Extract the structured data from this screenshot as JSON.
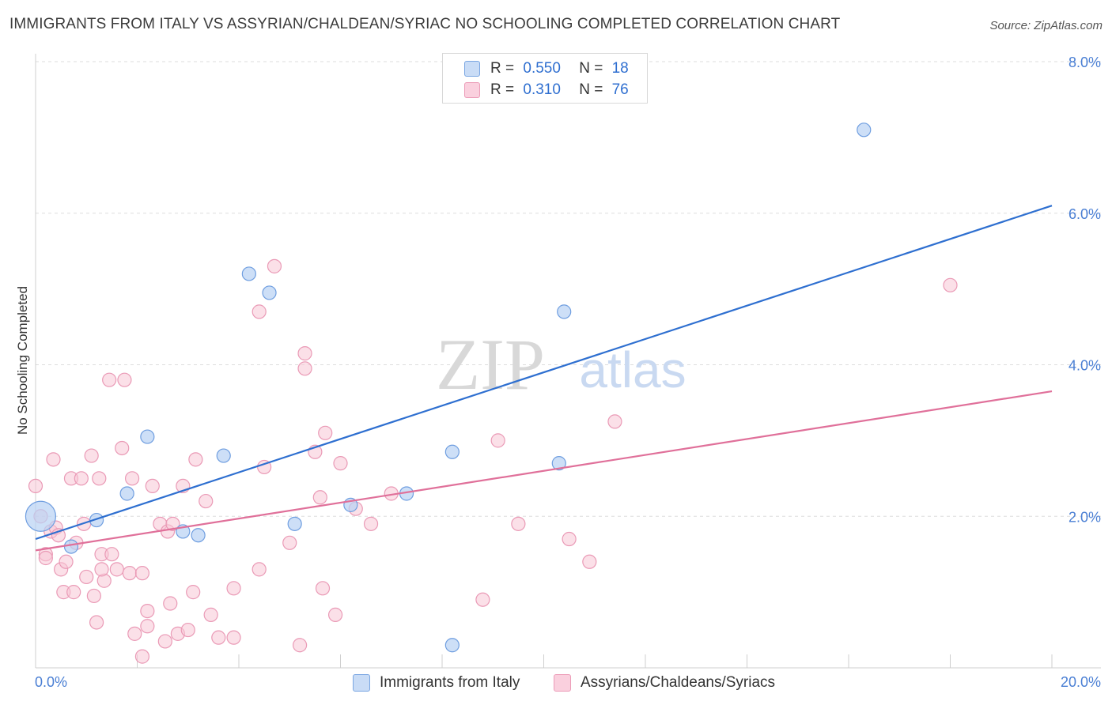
{
  "title": "IMMIGRANTS FROM ITALY VS ASSYRIAN/CHALDEAN/SYRIAC NO SCHOOLING COMPLETED CORRELATION CHART",
  "source": "Source: ZipAtlas.com",
  "legend": {
    "r_label": "R =",
    "n_label": "N =",
    "italy": {
      "r": "0.550",
      "n": "18"
    },
    "assyrian": {
      "r": "0.310",
      "n": "76"
    }
  },
  "colors": {
    "italy_fill": "#b8d2f4",
    "italy_stroke": "#6f9ee0",
    "italy_line": "#2e6fd0",
    "assyrian_fill": "#f8c6d6",
    "assyrian_stroke": "#ea9ab6",
    "assyrian_line": "#e0709a",
    "tick": "#4a7fd4"
  },
  "chart_data": {
    "type": "scatter",
    "ylabel": "No Schooling Completed",
    "x_tick_labels": [
      "0.0%",
      "20.0%"
    ],
    "y_tick_labels": [
      "2.0%",
      "4.0%",
      "6.0%",
      "8.0%"
    ],
    "xlim": [
      0,
      20
    ],
    "ylim": [
      0,
      8
    ],
    "y_ticks": [
      2,
      4,
      6,
      8
    ],
    "grid": "horizontal dashed",
    "legend_position": "top-center",
    "series": [
      {
        "name": "Immigrants from Italy",
        "points": [
          [
            0.1,
            2.0
          ],
          [
            0.7,
            1.6
          ],
          [
            1.2,
            1.95
          ],
          [
            1.8,
            2.3
          ],
          [
            2.2,
            3.05
          ],
          [
            2.9,
            1.8
          ],
          [
            3.2,
            1.75
          ],
          [
            3.7,
            2.8
          ],
          [
            4.2,
            5.2
          ],
          [
            4.6,
            4.95
          ],
          [
            5.1,
            1.9
          ],
          [
            6.2,
            2.15
          ],
          [
            7.3,
            2.3
          ],
          [
            8.2,
            2.85
          ],
          [
            10.4,
            4.7
          ],
          [
            10.3,
            2.7
          ],
          [
            16.3,
            7.1
          ],
          [
            8.2,
            0.3
          ]
        ],
        "trend": [
          [
            0,
            1.7
          ],
          [
            20,
            6.1
          ]
        ]
      },
      {
        "name": "Assyrians/Chaldeans/Syriacs",
        "points": [
          [
            0.0,
            2.4
          ],
          [
            0.1,
            2.0
          ],
          [
            0.2,
            1.5
          ],
          [
            0.3,
            1.8
          ],
          [
            0.35,
            2.75
          ],
          [
            0.4,
            1.85
          ],
          [
            0.45,
            1.75
          ],
          [
            0.5,
            1.3
          ],
          [
            0.55,
            1.0
          ],
          [
            0.6,
            1.4
          ],
          [
            0.7,
            2.5
          ],
          [
            0.75,
            1.0
          ],
          [
            0.8,
            1.65
          ],
          [
            0.9,
            2.5
          ],
          [
            0.95,
            1.9
          ],
          [
            1.0,
            1.2
          ],
          [
            1.1,
            2.8
          ],
          [
            1.15,
            0.95
          ],
          [
            1.2,
            0.6
          ],
          [
            1.25,
            2.5
          ],
          [
            1.3,
            1.5
          ],
          [
            1.35,
            1.15
          ],
          [
            1.45,
            3.8
          ],
          [
            1.5,
            1.5
          ],
          [
            1.6,
            1.3
          ],
          [
            1.7,
            2.9
          ],
          [
            1.75,
            3.8
          ],
          [
            1.85,
            1.25
          ],
          [
            1.9,
            2.5
          ],
          [
            1.95,
            0.45
          ],
          [
            2.1,
            0.15
          ],
          [
            2.1,
            1.25
          ],
          [
            2.2,
            0.75
          ],
          [
            2.2,
            0.55
          ],
          [
            2.3,
            2.4
          ],
          [
            2.45,
            1.9
          ],
          [
            2.55,
            0.35
          ],
          [
            2.6,
            1.8
          ],
          [
            2.65,
            0.85
          ],
          [
            2.7,
            1.9
          ],
          [
            2.8,
            0.45
          ],
          [
            2.9,
            2.4
          ],
          [
            3.1,
            1.0
          ],
          [
            3.15,
            2.75
          ],
          [
            3.35,
            2.2
          ],
          [
            3.45,
            0.7
          ],
          [
            3.6,
            0.4
          ],
          [
            3.9,
            0.4
          ],
          [
            3.9,
            1.05
          ],
          [
            4.4,
            4.7
          ],
          [
            4.4,
            1.3
          ],
          [
            4.5,
            2.65
          ],
          [
            4.7,
            5.3
          ],
          [
            5.0,
            1.65
          ],
          [
            5.2,
            0.3
          ],
          [
            5.3,
            4.15
          ],
          [
            5.3,
            3.95
          ],
          [
            5.5,
            2.85
          ],
          [
            5.6,
            2.25
          ],
          [
            5.65,
            1.05
          ],
          [
            5.7,
            3.1
          ],
          [
            5.9,
            0.7
          ],
          [
            6.0,
            2.7
          ],
          [
            6.3,
            2.1
          ],
          [
            6.6,
            1.9
          ],
          [
            7.0,
            2.3
          ],
          [
            8.8,
            0.9
          ],
          [
            9.1,
            3.0
          ],
          [
            9.5,
            1.9
          ],
          [
            10.5,
            1.7
          ],
          [
            10.9,
            1.4
          ],
          [
            11.4,
            3.25
          ],
          [
            18.0,
            5.05
          ],
          [
            1.3,
            1.3
          ],
          [
            0.2,
            1.45
          ],
          [
            3.0,
            0.5
          ]
        ],
        "trend": [
          [
            0,
            1.55
          ],
          [
            20,
            3.65
          ]
        ]
      }
    ]
  },
  "bottom_legend": {
    "italy": "Immigrants from Italy",
    "assyrian": "Assyrians/Chaldeans/Syriacs"
  },
  "watermark": {
    "zip": "ZIP",
    "atlas": "atlas"
  }
}
